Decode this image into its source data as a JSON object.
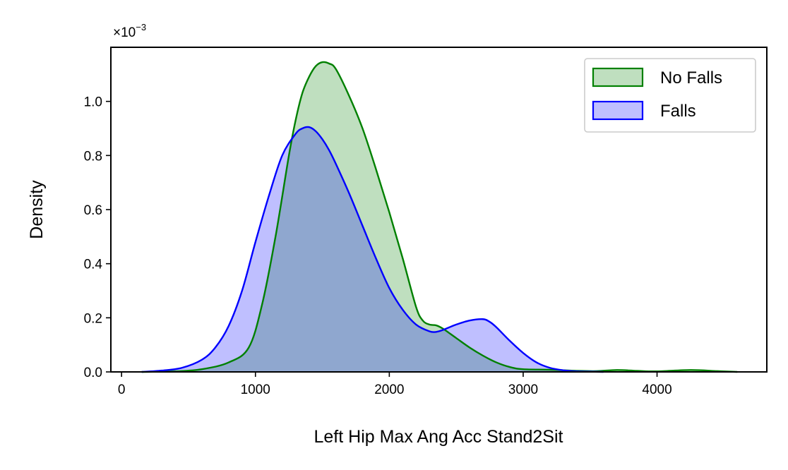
{
  "chart_data": {
    "type": "area",
    "title": "",
    "xlabel": "Left Hip Max Ang Acc Stand2Sit",
    "ylabel": "Density",
    "y_offset_label": {
      "base": "×10",
      "exponent": "−3"
    },
    "xlim": [
      -80,
      4820
    ],
    "ylim": [
      0,
      1.2
    ],
    "x_ticks": [
      0,
      1000,
      2000,
      3000,
      4000
    ],
    "x_tick_labels": [
      "0",
      "1000",
      "2000",
      "3000",
      "4000"
    ],
    "y_ticks": [
      0.0,
      0.2,
      0.4,
      0.6,
      0.8,
      1.0
    ],
    "y_tick_labels": [
      "0.0",
      "0.2",
      "0.4",
      "0.6",
      "0.8",
      "1.0"
    ],
    "grid": false,
    "legend_position": "top-right",
    "series": [
      {
        "name": "No Falls",
        "line_color": "#008000",
        "fill_color": "#008000",
        "fill_opacity": 0.25,
        "x": [
          150,
          400,
          600,
          800,
          950,
          1050,
          1150,
          1250,
          1300,
          1350,
          1400,
          1450,
          1500,
          1550,
          1600,
          1700,
          1800,
          1900,
          2000,
          2100,
          2200,
          2250,
          2300,
          2350,
          2400,
          2500,
          2600,
          2700,
          2800,
          2900,
          3000,
          3200,
          3400,
          3550,
          3700,
          3850,
          4000,
          4250,
          4450,
          4600
        ],
        "y": [
          0.0,
          0.002,
          0.01,
          0.035,
          0.09,
          0.25,
          0.5,
          0.8,
          0.93,
          1.03,
          1.09,
          1.13,
          1.145,
          1.14,
          1.12,
          1.02,
          0.9,
          0.75,
          0.59,
          0.42,
          0.24,
          0.19,
          0.175,
          0.172,
          0.16,
          0.125,
          0.09,
          0.06,
          0.035,
          0.018,
          0.01,
          0.008,
          0.004,
          0.003,
          0.007,
          0.004,
          0.002,
          0.007,
          0.003,
          0.0
        ]
      },
      {
        "name": "Falls",
        "line_color": "#0000ff",
        "fill_color": "#0000ff",
        "fill_opacity": 0.25,
        "x": [
          150,
          300,
          450,
          600,
          700,
          800,
          900,
          1000,
          1100,
          1200,
          1300,
          1350,
          1400,
          1450,
          1500,
          1550,
          1600,
          1700,
          1800,
          1900,
          2000,
          2100,
          2200,
          2300,
          2350,
          2400,
          2500,
          2600,
          2700,
          2750,
          2800,
          2900,
          3000,
          3100,
          3200,
          3300,
          3400,
          3500,
          3600
        ],
        "y": [
          0.0,
          0.005,
          0.015,
          0.045,
          0.09,
          0.17,
          0.3,
          0.48,
          0.65,
          0.8,
          0.88,
          0.9,
          0.905,
          0.89,
          0.86,
          0.82,
          0.77,
          0.66,
          0.54,
          0.42,
          0.31,
          0.23,
          0.175,
          0.15,
          0.148,
          0.155,
          0.175,
          0.19,
          0.195,
          0.185,
          0.165,
          0.115,
          0.07,
          0.035,
          0.015,
          0.006,
          0.002,
          0.001,
          0.0
        ]
      }
    ]
  }
}
